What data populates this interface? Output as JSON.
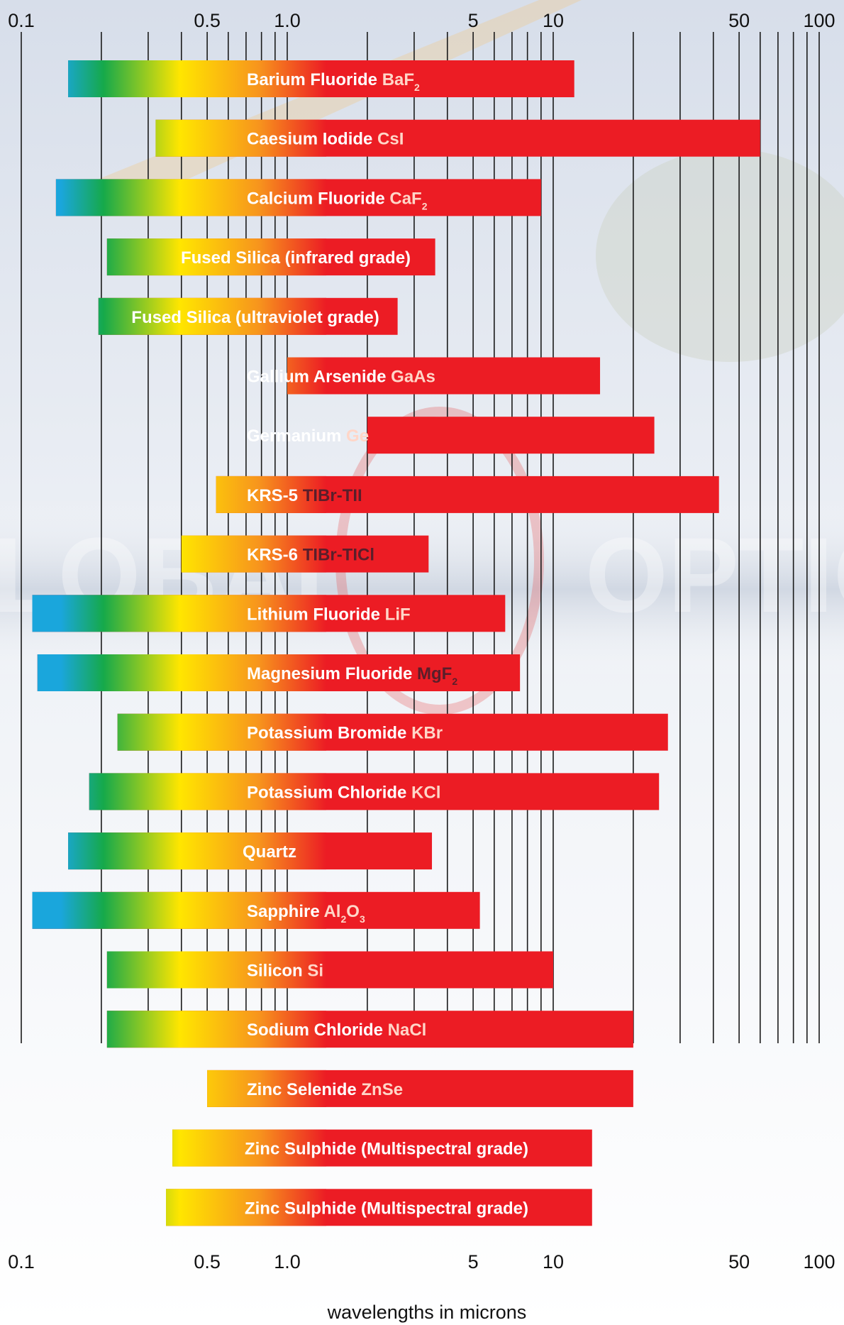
{
  "watermark": {
    "left": "LOBAL",
    "right": "OPTIC"
  },
  "colors": {
    "uv": "#1aa6dc",
    "green": "#16a94a",
    "yellow": "#ffe600",
    "orange": "#f7941d",
    "red": "#ec1c24",
    "formula_dark": "#5a1e2a"
  },
  "chart_data": {
    "type": "bar",
    "orientation": "horizontal",
    "xscale": "log",
    "xlim": [
      0.1,
      100
    ],
    "xlabel": "wavelengths in microns",
    "tick_labels": [
      "0.1",
      "0.5",
      "1.0",
      "5",
      "10",
      "50",
      "100"
    ],
    "tick_values": [
      0.1,
      0.5,
      1.0,
      5,
      10,
      50,
      100
    ],
    "gridlines": [
      0.1,
      0.2,
      0.3,
      0.4,
      0.5,
      0.6,
      0.7,
      0.8,
      0.9,
      1,
      2,
      3,
      4,
      5,
      6,
      7,
      8,
      9,
      10,
      20,
      30,
      40,
      50,
      60,
      70,
      80,
      90,
      100
    ],
    "grid": true,
    "series": [
      {
        "name": "Barium Fluoride",
        "formula": "BaF",
        "sub": "2",
        "range": [
          0.15,
          12
        ]
      },
      {
        "name": "Caesium Iodide",
        "formula": "CsI",
        "sub": "",
        "range": [
          0.32,
          60
        ]
      },
      {
        "name": "Calcium Fluoride",
        "formula": "CaF",
        "sub": "2",
        "range": [
          0.135,
          9
        ]
      },
      {
        "name": "Fused Silica (infrared grade)",
        "formula": "",
        "sub": "",
        "range": [
          0.21,
          3.6
        ]
      },
      {
        "name": "Fused Silica (ultraviolet grade)",
        "formula": "",
        "sub": "",
        "range": [
          0.195,
          2.6
        ]
      },
      {
        "name": "Gallium Arsenide",
        "formula": "GaAs",
        "sub": "",
        "range": [
          1.0,
          15
        ]
      },
      {
        "name": "Germanium",
        "formula": "Ge",
        "sub": "",
        "range": [
          2.0,
          24
        ]
      },
      {
        "name": "KRS-5",
        "formula": "TIBr-TII",
        "sub": "",
        "range": [
          0.54,
          42
        ]
      },
      {
        "name": "KRS-6",
        "formula": "TIBr-TICl",
        "sub": "",
        "range": [
          0.4,
          3.4
        ]
      },
      {
        "name": "Lithium Fluoride",
        "formula": "LiF",
        "sub": "",
        "range": [
          0.11,
          6.6
        ]
      },
      {
        "name": "Magnesium Fluoride",
        "formula": "MgF",
        "sub": "2",
        "range": [
          0.115,
          7.5
        ]
      },
      {
        "name": "Potassium Bromide",
        "formula": "KBr",
        "sub": "",
        "range": [
          0.23,
          27
        ]
      },
      {
        "name": "Potassium Chloride",
        "formula": "KCl",
        "sub": "",
        "range": [
          0.18,
          25
        ]
      },
      {
        "name": "Quartz",
        "formula": "",
        "sub": "",
        "range": [
          0.15,
          3.5
        ]
      },
      {
        "name": "Sapphire",
        "formula": "Al",
        "sub": "2",
        "formula2": "O",
        "sub2": "3",
        "range": [
          0.11,
          5.3
        ]
      },
      {
        "name": "Silicon",
        "formula": "Si",
        "sub": "",
        "range": [
          0.21,
          10
        ]
      },
      {
        "name": "Sodium Chloride",
        "formula": "NaCl",
        "sub": "",
        "range": [
          0.21,
          20
        ]
      },
      {
        "name": "Zinc Selenide",
        "formula": "ZnSe",
        "sub": "",
        "range": [
          0.5,
          20
        ]
      },
      {
        "name": "Zinc Sulphide (Multispectral grade)",
        "formula": "",
        "sub": "",
        "range": [
          0.37,
          14
        ]
      },
      {
        "name": "Zinc Sulphide (Multispectral grade)",
        "formula": "",
        "sub": "",
        "range": [
          0.35,
          14
        ]
      }
    ]
  }
}
